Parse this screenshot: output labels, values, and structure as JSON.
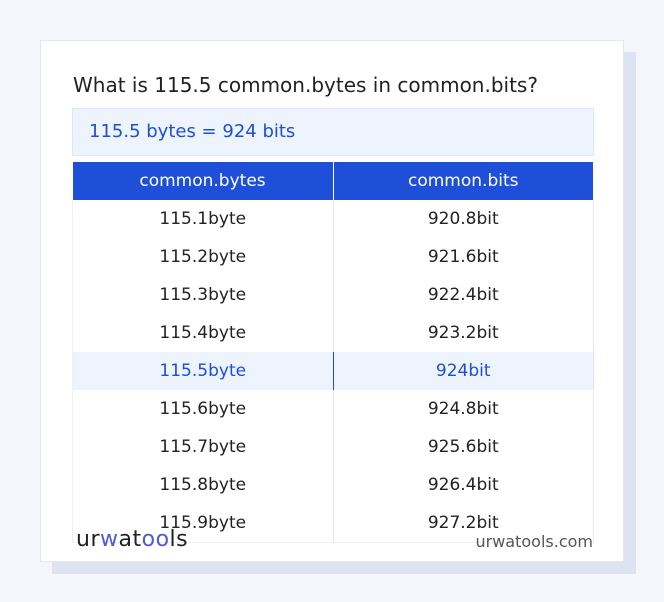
{
  "title": "What is 115.5 common.bytes in common.bits?",
  "result": "115.5 bytes = 924 bits",
  "table": {
    "headers": [
      "common.bytes",
      "common.bits"
    ],
    "rows": [
      [
        "115.1byte",
        "920.8bit"
      ],
      [
        "115.2byte",
        "921.6bit"
      ],
      [
        "115.3byte",
        "922.4bit"
      ],
      [
        "115.4byte",
        "923.2bit"
      ],
      [
        "115.5byte",
        "924bit"
      ],
      [
        "115.6byte",
        "924.8bit"
      ],
      [
        "115.7byte",
        "925.6bit"
      ],
      [
        "115.8byte",
        "926.4bit"
      ],
      [
        "115.9byte",
        "927.2bit"
      ]
    ],
    "highlighted_row": 4
  },
  "footer": {
    "logo": "urwatools",
    "site": "urwatools.com"
  },
  "colors": {
    "accent": "#1d4fd8",
    "highlight_bg": "#edf4fe"
  }
}
